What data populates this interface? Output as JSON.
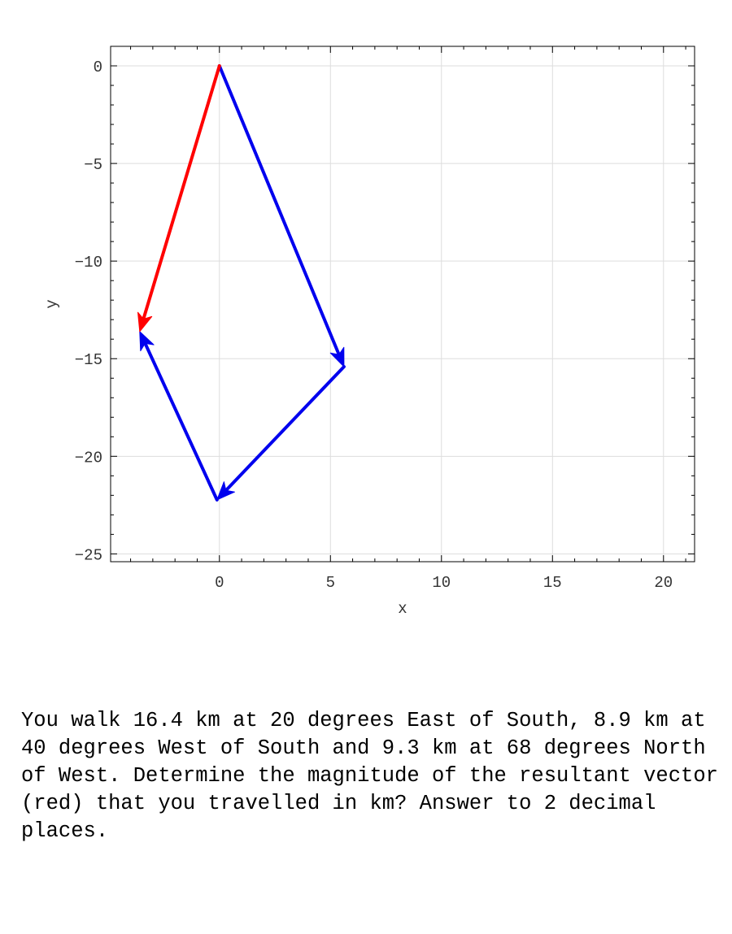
{
  "chart_data": {
    "type": "vector_diagram",
    "xlabel": "x",
    "ylabel": "y",
    "xlim": [
      -4.9,
      21.4
    ],
    "ylim": [
      -25.4,
      1.0
    ],
    "xticks": [
      0,
      5,
      10,
      15,
      20
    ],
    "yticks": [
      0,
      -5,
      -10,
      -15,
      -20,
      -25
    ],
    "grid": true,
    "vectors": [
      {
        "from": [
          0,
          0
        ],
        "to": [
          5.61,
          -15.41
        ],
        "color": "#0000ee"
      },
      {
        "from": [
          5.61,
          -15.41
        ],
        "to": [
          -0.11,
          -22.23
        ],
        "color": "#0000ee"
      },
      {
        "from": [
          -0.11,
          -22.23
        ],
        "to": [
          -3.59,
          -13.61
        ],
        "color": "#0000ee"
      },
      {
        "from": [
          0,
          0
        ],
        "to": [
          -3.59,
          -13.61
        ],
        "color": "#ff0000"
      }
    ]
  },
  "question": {
    "text": "You walk 16.4 km at 20 degrees East of South, 8.9 km at 40 degrees West of South and 9.3 km at 68 degrees North of West.  Determine the magnitude of the resultant vector (red) that you travelled in km? Answer to 2 decimal places."
  }
}
